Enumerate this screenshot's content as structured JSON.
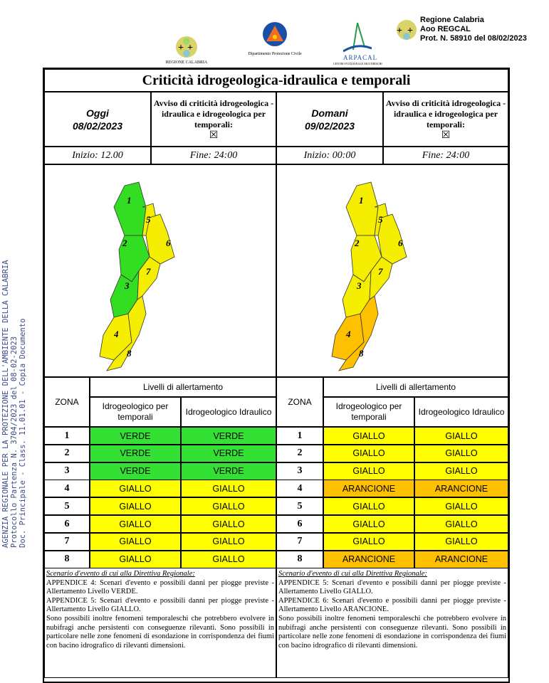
{
  "header": {
    "logos": [
      {
        "name": "regione-calabria",
        "caption": "REGIONE CALABRIA"
      },
      {
        "name": "protezione-civile",
        "caption": "Dipartimento Protezione Civile"
      },
      {
        "name": "arpacal",
        "caption": "ARPACAL",
        "subcaption": "CENTRO FUNZIONALE MULTIRISCHI"
      }
    ],
    "protocol": [
      "Regione Calabria",
      "Aoo REGCAL",
      "Prot. N. 58910 del 08/02/2023"
    ]
  },
  "side_stamp": [
    "AGENZIA REGIONALE PER LA PROTEZIONE DELL'AMBIENTE DELLA CALABRIA",
    "Protocollo Partenza N. 3704/2023 del 08-02-2023",
    "Doc. Principale - Class. 11.01.01 - Copia Documento"
  ],
  "title": "Criticità idrogeologica-idraulica e temporali",
  "days": [
    {
      "label": "Oggi",
      "date": "08/02/2023",
      "avviso": "Avviso di criticità idrogeologica - idraulica e idrogeologica per temporali:",
      "checkbox": "☒",
      "start": "Inizio: 12.00",
      "end": "Fine: 24:00",
      "zone_colors": [
        "#33dd22",
        "#33dd22",
        "#33dd22",
        "#f5ee00",
        "#f5ee00",
        "#f5ee00",
        "#f5ee00",
        "#f5ee00"
      ],
      "scenario_title": "Scenario d'evento di cui alla Direttiva Regionale:",
      "scenario": "APPENDICE 4: Scenari d'evento e possibili danni per piogge previste - Allertamento Livello VERDE.\nAPPENDICE 5: Scenari d'evento e possibili danni per piogge previste - Allertamento Livello GIALLO.\nSono possibili inoltre fenomeni temporaleschi che potrebbero evolvere in nubifragi anche persistenti con conseguenze rilevanti. Sono possibili in particolare nelle zone fenomeni di esondazione in corrispondenza dei fiumi con bacino idrografico di rilevanti dimensioni.",
      "rows": [
        [
          "1",
          "VERDE",
          "VERDE"
        ],
        [
          "2",
          "VERDE",
          "VERDE"
        ],
        [
          "3",
          "VERDE",
          "VERDE"
        ],
        [
          "4",
          "GIALLO",
          "GIALLO"
        ],
        [
          "5",
          "GIALLO",
          "GIALLO"
        ],
        [
          "6",
          "GIALLO",
          "GIALLO"
        ],
        [
          "7",
          "GIALLO",
          "GIALLO"
        ],
        [
          "8",
          "GIALLO",
          "GIALLO"
        ]
      ]
    },
    {
      "label": "Domani",
      "date": "09/02/2023",
      "avviso": "Avviso di criticità idrogeologica - idraulica e idrogeologica per temporali:",
      "checkbox": "☒",
      "start": "Inizio: 00:00",
      "end": "Fine: 24:00",
      "zone_colors": [
        "#f5ee00",
        "#f5ee00",
        "#f5ee00",
        "#ffc000",
        "#f5ee00",
        "#f5ee00",
        "#f5ee00",
        "#ffc000"
      ],
      "scenario_title": "Scenario d'evento di cui alla Direttiva Regionale:",
      "scenario": "APPENDICE 5: Scenari d'evento e possibili danni per piogge previste - Allertamento Livello GIALLO.\nAPPENDICE 6: Scenari d'evento e possibili danni per piogge previste - Allertamento Livello ARANCIONE.\nSono possibili inoltre fenomeni temporaleschi che potrebbero evolvere in nubifragi anche persistenti con conseguenze rilevanti. Sono possibili in particolare nelle zone fenomeni di esondazione in corrispondenza dei fiumi con bacino idrografico di rilevanti dimensioni.",
      "rows": [
        [
          "1",
          "GIALLO",
          "GIALLO"
        ],
        [
          "2",
          "GIALLO",
          "GIALLO"
        ],
        [
          "3",
          "GIALLO",
          "GIALLO"
        ],
        [
          "4",
          "ARANCIONE",
          "ARANCIONE"
        ],
        [
          "5",
          "GIALLO",
          "GIALLO"
        ],
        [
          "6",
          "GIALLO",
          "GIALLO"
        ],
        [
          "7",
          "GIALLO",
          "GIALLO"
        ],
        [
          "8",
          "ARANCIONE",
          "ARANCIONE"
        ]
      ]
    }
  ],
  "table_header": {
    "zona": "ZONA",
    "livelli": "Livelli di allertamento",
    "col1": "Idrogeologico per temporali",
    "col2": "Idrogeologico Idraulico"
  },
  "level_colors": {
    "VERDE": "#33e033",
    "GIALLO": "#ffff00",
    "ARANCIONE": "#ffc000"
  }
}
